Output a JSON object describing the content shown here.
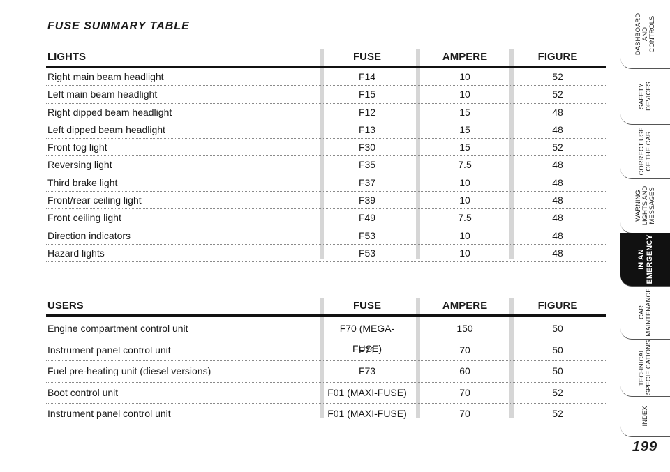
{
  "page_title": "FUSE SUMMARY TABLE",
  "lights": {
    "headers": [
      "LIGHTS",
      "FUSE",
      "AMPERE",
      "FIGURE"
    ],
    "rows": [
      [
        "Right main beam headlight",
        "F14",
        "10",
        "52"
      ],
      [
        "Left main beam headlight",
        "F15",
        "10",
        "52"
      ],
      [
        "Right dipped beam headlight",
        "F12",
        "15",
        "48"
      ],
      [
        "Left dipped beam headlight",
        "F13",
        "15",
        "48"
      ],
      [
        "Front fog light",
        "F30",
        "15",
        "52"
      ],
      [
        "Reversing light",
        "F35",
        "7.5",
        "48"
      ],
      [
        "Third brake light",
        "F37",
        "10",
        "48"
      ],
      [
        "Front/rear ceiling light",
        "F39",
        "10",
        "48"
      ],
      [
        "Front ceiling light",
        "F49",
        "7.5",
        "48"
      ],
      [
        "Direction indicators",
        "F53",
        "10",
        "48"
      ],
      [
        "Hazard lights",
        "F53",
        "10",
        "48"
      ]
    ]
  },
  "users": {
    "headers": [
      "USERS",
      "FUSE",
      "AMPERE",
      "FIGURE"
    ],
    "rows": [
      [
        "Engine compartment control unit",
        "F70 (MEGA-FUSE)",
        "150",
        "50"
      ],
      [
        "Instrument panel control unit",
        "F71",
        "70",
        "50"
      ],
      [
        "Fuel pre-heating unit (diesel versions)",
        "F73",
        "60",
        "50"
      ],
      [
        "Boot control unit",
        "F01 (MAXI-FUSE)",
        "70",
        "52"
      ],
      [
        "Instrument panel control unit",
        "F01 (MAXI-FUSE)",
        "70",
        "52"
      ]
    ]
  },
  "sidebar": {
    "tabs": [
      "DASHBOARD\nAND\nCONTROLS",
      "SAFETY\nDEVICES",
      "CORRECT USE\nOF THE CAR",
      "WARNING\nLIGHTS AND\nMESSAGES",
      "IN AN\nEMERGENCY",
      "CAR\nMAINTENANCE",
      "TECHNICAL\nSPECIFICATIONS",
      "INDEX"
    ],
    "active_index": 4
  },
  "page_number": "199"
}
